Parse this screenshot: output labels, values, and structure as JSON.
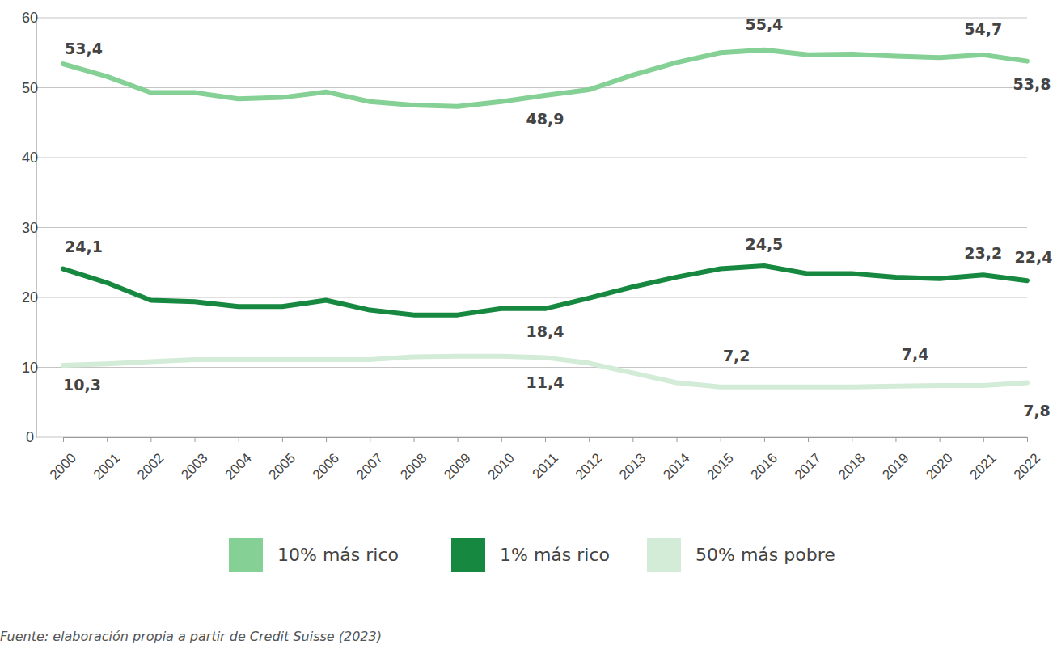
{
  "chart_data": {
    "type": "line",
    "categories": [
      "2000",
      "2001",
      "2002",
      "2003",
      "2004",
      "2005",
      "2006",
      "2007",
      "2008",
      "2009",
      "2010",
      "2011",
      "2012",
      "2013",
      "2014",
      "2015",
      "2016",
      "2017",
      "2018",
      "2019",
      "2020",
      "2021",
      "2022"
    ],
    "series": [
      {
        "name": "10% más rico",
        "color": "#84d095",
        "values": [
          53.4,
          51.6,
          49.3,
          49.3,
          48.4,
          48.6,
          49.4,
          48.0,
          47.5,
          47.3,
          48.0,
          48.9,
          49.7,
          51.8,
          53.6,
          55.0,
          55.4,
          54.7,
          54.8,
          54.5,
          54.3,
          54.7,
          53.8
        ],
        "value_labels": [
          "53,4",
          null,
          null,
          null,
          null,
          null,
          null,
          null,
          null,
          null,
          null,
          "48,9",
          null,
          null,
          null,
          null,
          "55,4",
          null,
          null,
          null,
          null,
          "54,7",
          "53,8"
        ]
      },
      {
        "name": "1% más rico",
        "color": "#16883f",
        "values": [
          24.1,
          22.1,
          19.6,
          19.4,
          18.7,
          18.7,
          19.6,
          18.2,
          17.5,
          17.5,
          18.4,
          18.4,
          19.9,
          21.5,
          22.9,
          24.1,
          24.5,
          23.4,
          23.4,
          22.9,
          22.7,
          23.2,
          22.4
        ],
        "value_labels": [
          "24,1",
          null,
          null,
          null,
          null,
          null,
          null,
          null,
          null,
          null,
          null,
          "18,4",
          null,
          null,
          null,
          null,
          "24,5",
          null,
          null,
          null,
          null,
          "23,2",
          "22,4"
        ]
      },
      {
        "name": "50% más pobre",
        "color": "#d3ecd8",
        "values": [
          10.3,
          10.5,
          10.8,
          11.1,
          11.1,
          11.1,
          11.1,
          11.1,
          11.5,
          11.6,
          11.6,
          11.4,
          10.6,
          9.2,
          7.8,
          7.2,
          7.2,
          7.2,
          7.2,
          7.3,
          7.4,
          7.4,
          7.8
        ],
        "value_labels": [
          "10,3",
          null,
          null,
          null,
          null,
          null,
          null,
          null,
          null,
          null,
          null,
          "11,4",
          null,
          null,
          null,
          "7,2",
          null,
          null,
          null,
          null,
          "7,4",
          null,
          "7,8"
        ]
      }
    ],
    "ylim": [
      0,
      60
    ],
    "yticks": [
      0,
      10,
      20,
      30,
      40,
      50,
      60
    ],
    "grid": true,
    "legend": "bottom",
    "source": "Fuente: elaboración propia a partir de Credit Suisse (2023)"
  }
}
